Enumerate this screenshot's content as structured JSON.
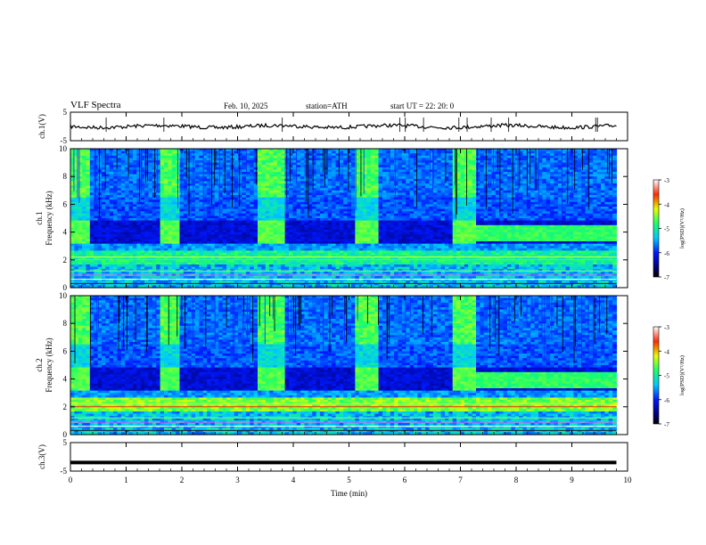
{
  "header": {
    "title": "VLF  Spectra",
    "date": "Feb. 10, 2025",
    "station": "station=ATH",
    "start_ut": "start  UT  =    22: 20: 0"
  },
  "chart_data": [
    {
      "type": "line",
      "panel": "ch1-waveform",
      "ylabel": "ch.1(V)",
      "ylim": [
        -5,
        5
      ],
      "yticks": [
        "5",
        "-5"
      ],
      "series": [
        {
          "x": [
            0,
            9.8
          ],
          "approx_level": 0
        }
      ]
    },
    {
      "type": "heatmap",
      "panel": "ch1-spectrogram",
      "ylabel": "ch.1\nFrequency (kHz)",
      "ylabel_channel": "ch.1",
      "ylabel_freq": "Frequency  (kHz)",
      "ylim": [
        0,
        10
      ],
      "yticks": [
        "0",
        "2",
        "4",
        "6",
        "8",
        "10"
      ],
      "colorbar": {
        "label": "log(PSD)(V²/Hz)",
        "ticks": [
          "-3",
          "-4",
          "-5",
          "-6",
          "-7"
        ],
        "range": [
          -7,
          -3
        ]
      }
    },
    {
      "type": "heatmap",
      "panel": "ch2-spectrogram",
      "ylabel_channel": "ch.2",
      "ylabel_freq": "Frequency  (kHz)",
      "ylim": [
        0,
        10
      ],
      "yticks": [
        "0",
        "2",
        "4",
        "6",
        "8",
        "10"
      ],
      "colorbar": {
        "label": "log(PSD)(V²/Hz)",
        "ticks": [
          "-3",
          "-4",
          "-5",
          "-6",
          "-7"
        ],
        "range": [
          -7,
          -3
        ]
      }
    },
    {
      "type": "line",
      "panel": "ch3-waveform",
      "ylabel": "ch.3(V)",
      "ylim": [
        -5,
        5
      ],
      "yticks": [
        "5",
        "-5"
      ],
      "series": [
        {
          "x": [
            0,
            9.8
          ],
          "approx_level": -2
        }
      ]
    }
  ],
  "xaxis": {
    "label": "Time  (min)",
    "ticks": [
      "0",
      "1",
      "2",
      "3",
      "4",
      "5",
      "6",
      "7",
      "8",
      "9",
      "10"
    ],
    "range": [
      0,
      10
    ]
  },
  "colors": {
    "frame": "#000000",
    "trace": "#000000"
  }
}
